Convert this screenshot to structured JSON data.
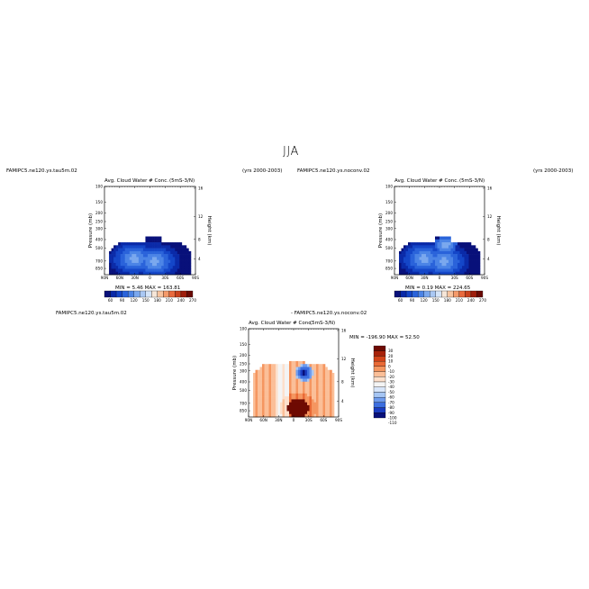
{
  "title": "JJA",
  "colors": {
    "seq": [
      "#08107a",
      "#0a2aa8",
      "#1446c8",
      "#2a63da",
      "#4b84e6",
      "#7aa8ee",
      "#a9c8f4",
      "#d4e4f8",
      "#f6e6d8",
      "#f7c4a0",
      "#f49a6a",
      "#e86a3e",
      "#c9421e",
      "#9e1e0c",
      "#6a0a04"
    ],
    "div": [
      "#08107a",
      "#1a3cc0",
      "#3d6fe0",
      "#6f9cee",
      "#a6c6f4",
      "#d8e6fa",
      "#f4f4f4",
      "#fde0cc",
      "#fbbf98",
      "#f59660",
      "#ea6a36",
      "#d2441a",
      "#a8220a",
      "#6e0a02"
    ]
  },
  "panels": [
    {
      "case_label": "FAMIPC5.ne120.ys.tau5m.02",
      "years_label": "(yrs 2000-2003)",
      "title": "Avg. Cloud Water # Conc.",
      "region": "(5mS-3/N)",
      "min_max": "MIN =    5.46   MAX = 163.81",
      "colorbar_labels": [
        "60",
        "90",
        "120",
        "150",
        "180",
        "210",
        "240",
        "270"
      ]
    },
    {
      "case_label": "FAMIPC5.ne120.ys.noconv.02",
      "years_label": "(yrs 2000-2003)",
      "title": "Avg. Cloud Water # Conc.",
      "region": "(5mS-3/N)",
      "min_max": "MIN =    0.19   MAX = 224.65",
      "colorbar_labels": [
        "60",
        "90",
        "120",
        "150",
        "180",
        "210",
        "240",
        "270"
      ]
    },
    {
      "case_label": "FAMIPC5.ne120.ys.tau5m.02",
      "diff_label": "- FAMIPC5.ne120.ys.noconv.02",
      "title": "Avg. Cloud Water # Conc.",
      "region": "(5mS-3/N)",
      "min_max": "MIN = -196.90   MAX =  52.50",
      "colorbar_labels": [
        "30",
        "20",
        "10",
        "0",
        "-10",
        "-20",
        "-30",
        "-40",
        "-50",
        "-60",
        "-70",
        "-80",
        "-90",
        "-100",
        "-110"
      ]
    }
  ],
  "axes": {
    "xlabels": [
      "90N",
      "60N",
      "30N",
      "0",
      "30S",
      "60S",
      "90S"
    ],
    "ylabel_left": "Pressure (mb)",
    "ylabel_right": "Height (km)",
    "pressure_ticks": [
      "100",
      "150",
      "200",
      "250",
      "300",
      "400",
      "500",
      "700",
      "850"
    ],
    "height_ticks": [
      "16",
      "12",
      "8",
      "4"
    ]
  },
  "chart_data": [
    {
      "type": "heatmap",
      "title": "Avg. Cloud Water # Conc.",
      "case": "FAMIPC5.ne120.ys.tau5m.02",
      "xlabel": "",
      "ylabel": "Pressure (mb)",
      "ylabel_right": "Height (km)",
      "x_range": [
        "90N",
        "90S"
      ],
      "y_range_mb": [
        1000,
        100
      ],
      "min": 5.46,
      "max": 163.81,
      "levels": [
        60,
        90,
        120,
        150,
        180,
        210,
        240,
        270
      ]
    },
    {
      "type": "heatmap",
      "title": "Avg. Cloud Water # Conc.",
      "case": "FAMIPC5.ne120.ys.noconv.02",
      "xlabel": "",
      "ylabel": "Pressure (mb)",
      "ylabel_right": "Height (km)",
      "x_range": [
        "90N",
        "90S"
      ],
      "y_range_mb": [
        1000,
        100
      ],
      "min": 0.19,
      "max": 224.65,
      "levels": [
        60,
        90,
        120,
        150,
        180,
        210,
        240,
        270
      ]
    },
    {
      "type": "heatmap",
      "title": "Avg. Cloud Water # Conc.",
      "case": "FAMIPC5.ne120.ys.tau5m.02 - FAMIPC5.ne120.ys.noconv.02",
      "xlabel": "",
      "ylabel": "Pressure (mb)",
      "ylabel_right": "Height (km)",
      "x_range": [
        "90N",
        "90S"
      ],
      "y_range_mb": [
        1000,
        100
      ],
      "min": -196.9,
      "max": 52.5,
      "levels": [
        30,
        20,
        10,
        0,
        -10,
        -20,
        -30,
        -40,
        -50,
        -60,
        -70,
        -80,
        -90,
        -100,
        -110
      ]
    }
  ]
}
